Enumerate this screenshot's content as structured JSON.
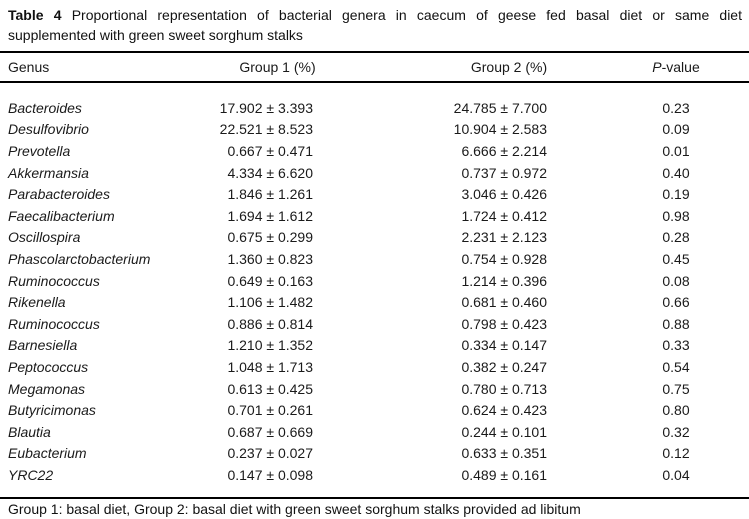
{
  "caption": {
    "label": "Table 4",
    "line1": "Proportional representation of bacterial genera in caecum of geese fed basal diet or same diet",
    "line2": "supplemented with green sweet sorghum stalks"
  },
  "table": {
    "columns": [
      "Genus",
      "Group 1 (%)",
      "Group 2 (%)",
      "P-value"
    ],
    "header": {
      "genus": "Genus",
      "group1": "Group 1 (%)",
      "group2": "Group 2 (%)",
      "pvalue_italic": "P",
      "pvalue_rest": "-value"
    },
    "rows": [
      {
        "genus": "Bacteroides",
        "group1": "17.902 ± 3.393",
        "group2": "24.785 ± 7.700",
        "p": "0.23"
      },
      {
        "genus": "Desulfovibrio",
        "group1": "22.521 ± 8.523",
        "group2": "10.904 ± 2.583",
        "p": "0.09"
      },
      {
        "genus": "Prevotella",
        "group1": "0.667 ± 0.471",
        "group2": "6.666 ± 2.214",
        "p": "0.01"
      },
      {
        "genus": "Akkermansia",
        "group1": "4.334 ± 6.620",
        "group2": "0.737 ± 0.972",
        "p": "0.40"
      },
      {
        "genus": "Parabacteroides",
        "group1": "1.846 ± 1.261",
        "group2": "3.046 ± 0.426",
        "p": "0.19"
      },
      {
        "genus": "Faecalibacterium",
        "group1": "1.694 ± 1.612",
        "group2": "1.724 ± 0.412",
        "p": "0.98"
      },
      {
        "genus": "Oscillospira",
        "group1": "0.675 ± 0.299",
        "group2": "2.231 ± 2.123",
        "p": "0.28"
      },
      {
        "genus": "Phascolarctobacterium",
        "group1": "1.360 ± 0.823",
        "group2": "0.754 ± 0.928",
        "p": "0.45"
      },
      {
        "genus": "Ruminococcus",
        "group1": "0.649 ± 0.163",
        "group2": "1.214 ± 0.396",
        "p": "0.08"
      },
      {
        "genus": "Rikenella",
        "group1": "1.106 ± 1.482",
        "group2": "0.681 ± 0.460",
        "p": "0.66"
      },
      {
        "genus": "Ruminococcus",
        "group1": "0.886 ± 0.814",
        "group2": "0.798 ± 0.423",
        "p": "0.88"
      },
      {
        "genus": "Barnesiella",
        "group1": "1.210 ± 1.352",
        "group2": "0.334 ± 0.147",
        "p": "0.33"
      },
      {
        "genus": "Peptococcus",
        "group1": "1.048 ± 1.713",
        "group2": "0.382 ± 0.247",
        "p": "0.54"
      },
      {
        "genus": "Megamonas",
        "group1": "0.613 ± 0.425",
        "group2": "0.780 ± 0.713",
        "p": "0.75"
      },
      {
        "genus": "Butyricimonas",
        "group1": "0.701 ± 0.261",
        "group2": "0.624 ± 0.423",
        "p": "0.80"
      },
      {
        "genus": "Blautia",
        "group1": "0.687 ± 0.669",
        "group2": "0.244 ± 0.101",
        "p": "0.32"
      },
      {
        "genus": "Eubacterium",
        "group1": "0.237 ± 0.027",
        "group2": "0.633 ± 0.351",
        "p": "0.12"
      },
      {
        "genus": "YRC22",
        "group1": "0.147 ± 0.098",
        "group2": "0.489 ± 0.161",
        "p": "0.04"
      }
    ],
    "footnote": "Group 1: basal diet, Group 2: basal diet with green sweet sorghum stalks provided ad libitum"
  },
  "chart_data": {
    "type": "table",
    "title": "Table 4 Proportional representation of bacterial genera in caecum of geese fed basal diet or same diet supplemented with green sweet sorghum stalks",
    "columns": [
      "Genus",
      "Group 1 (%)",
      "Group 2 (%)",
      "P-value"
    ],
    "rows": [
      [
        "Bacteroides",
        "17.902 ± 3.393",
        "24.785 ± 7.700",
        "0.23"
      ],
      [
        "Desulfovibrio",
        "22.521 ± 8.523",
        "10.904 ± 2.583",
        "0.09"
      ],
      [
        "Prevotella",
        "0.667 ± 0.471",
        "6.666 ± 2.214",
        "0.01"
      ],
      [
        "Akkermansia",
        "4.334 ± 6.620",
        "0.737 ± 0.972",
        "0.40"
      ],
      [
        "Parabacteroides",
        "1.846 ± 1.261",
        "3.046 ± 0.426",
        "0.19"
      ],
      [
        "Faecalibacterium",
        "1.694 ± 1.612",
        "1.724 ± 0.412",
        "0.98"
      ],
      [
        "Oscillospira",
        "0.675 ± 0.299",
        "2.231 ± 2.123",
        "0.28"
      ],
      [
        "Phascolarctobacterium",
        "1.360 ± 0.823",
        "0.754 ± 0.928",
        "0.45"
      ],
      [
        "Ruminococcus",
        "0.649 ± 0.163",
        "1.214 ± 0.396",
        "0.08"
      ],
      [
        "Rikenella",
        "1.106 ± 1.482",
        "0.681 ± 0.460",
        "0.66"
      ],
      [
        "Ruminococcus",
        "0.886 ± 0.814",
        "0.798 ± 0.423",
        "0.88"
      ],
      [
        "Barnesiella",
        "1.210 ± 1.352",
        "0.334 ± 0.147",
        "0.33"
      ],
      [
        "Peptococcus",
        "1.048 ± 1.713",
        "0.382 ± 0.247",
        "0.54"
      ],
      [
        "Megamonas",
        "0.613 ± 0.425",
        "0.780 ± 0.713",
        "0.75"
      ],
      [
        "Butyricimonas",
        "0.701 ± 0.261",
        "0.624 ± 0.423",
        "0.80"
      ],
      [
        "Blautia",
        "0.687 ± 0.669",
        "0.244 ± 0.101",
        "0.32"
      ],
      [
        "Eubacterium",
        "0.237 ± 0.027",
        "0.633 ± 0.351",
        "0.12"
      ],
      [
        "YRC22",
        "0.147 ± 0.098",
        "0.489 ± 0.161",
        "0.04"
      ]
    ],
    "footnote": "Group 1: basal diet, Group 2: basal diet with green sweet sorghum stalks provided ad libitum"
  }
}
